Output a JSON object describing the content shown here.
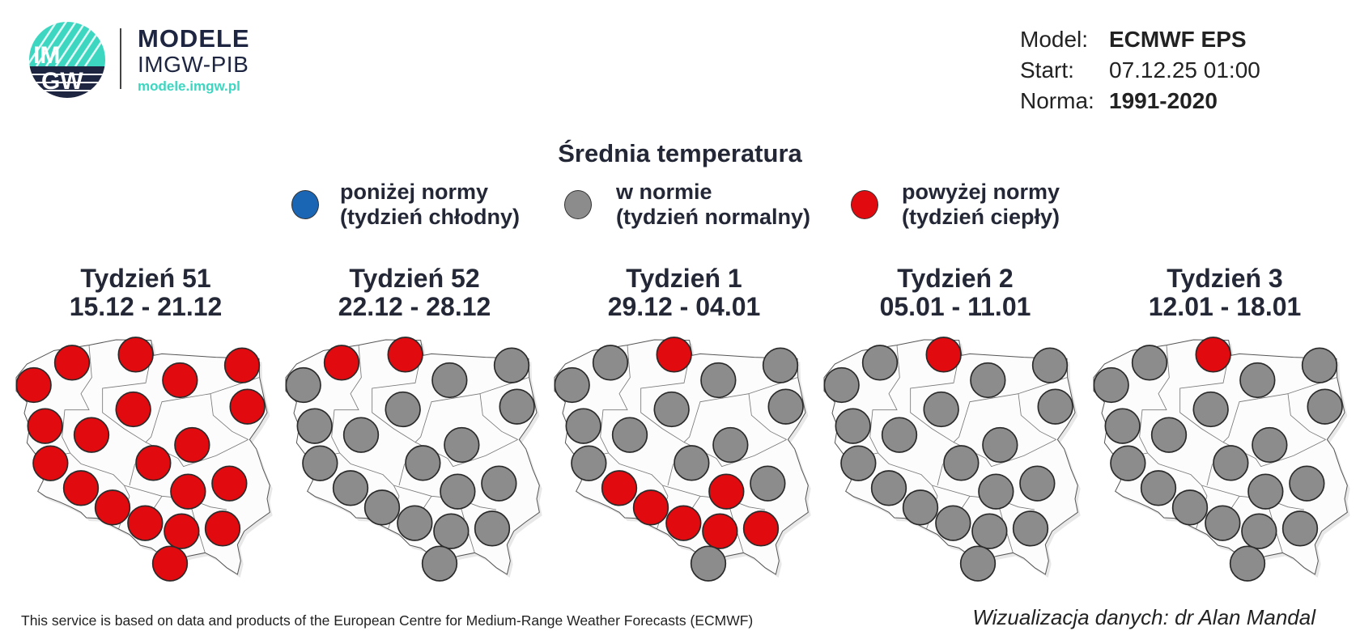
{
  "logo": {
    "letters_top": "IM",
    "letters_bottom": "GW",
    "brand": "MODELE",
    "subbrand": "IMGW-PIB",
    "url": "modele.imgw.pl",
    "teal": "#3dd6c0",
    "navy": "#1e2540"
  },
  "meta": {
    "model_label": "Model:",
    "model_value": "ECMWF EPS",
    "start_label": "Start:",
    "start_value": "07.12.25 01:00",
    "norm_label": "Norma:",
    "norm_value": "1991-2020"
  },
  "title": "Średnia temperatura",
  "legend": [
    {
      "key": "below",
      "line1": "poniżej normy",
      "line2": "(tydzień chłodny)",
      "color": "#1a66b5"
    },
    {
      "key": "normal",
      "line1": "w normie",
      "line2": "(tydzień normalny)",
      "color": "#8c8c8c"
    },
    {
      "key": "above",
      "line1": "powyżej normy",
      "line2": "(tydzień ciepły)",
      "color": "#e00a0f"
    }
  ],
  "maps": [
    {
      "week": "Tydzień 51",
      "dates": "15.12 - 21.12",
      "stations": [
        "above",
        "above",
        "above",
        "above",
        "above",
        "above",
        "above",
        "above",
        "above",
        "above",
        "above",
        "above",
        "above",
        "above",
        "above",
        "above",
        "above",
        "above",
        "above",
        "above"
      ]
    },
    {
      "week": "Tydzień 52",
      "dates": "22.12 - 28.12",
      "stations": [
        "normal",
        "above",
        "above",
        "normal",
        "normal",
        "normal",
        "normal",
        "normal",
        "normal",
        "normal",
        "normal",
        "normal",
        "normal",
        "normal",
        "normal",
        "normal",
        "normal",
        "normal",
        "normal",
        "normal"
      ]
    },
    {
      "week": "Tydzień 1",
      "dates": "29.12 - 04.01",
      "stations": [
        "normal",
        "normal",
        "above",
        "normal",
        "normal",
        "normal",
        "normal",
        "normal",
        "normal",
        "normal",
        "normal",
        "normal",
        "above",
        "normal",
        "above",
        "above",
        "above",
        "above",
        "above",
        "normal"
      ]
    },
    {
      "week": "Tydzień 2",
      "dates": "05.01 - 11.01",
      "stations": [
        "normal",
        "normal",
        "above",
        "normal",
        "normal",
        "normal",
        "normal",
        "normal",
        "normal",
        "normal",
        "normal",
        "normal",
        "normal",
        "normal",
        "normal",
        "normal",
        "normal",
        "normal",
        "normal",
        "normal"
      ]
    },
    {
      "week": "Tydzień 3",
      "dates": "12.01 - 18.01",
      "stations": [
        "normal",
        "normal",
        "above",
        "normal",
        "normal",
        "normal",
        "normal",
        "normal",
        "normal",
        "normal",
        "normal",
        "normal",
        "normal",
        "normal",
        "normal",
        "normal",
        "normal",
        "normal",
        "normal",
        "normal"
      ]
    }
  ],
  "footer": {
    "left": "This service is based on data and products of the European Centre for Medium-Range Weather Forecasts (ECMWF)",
    "right": "Wizualizacja danych: dr Alan Mandal"
  }
}
